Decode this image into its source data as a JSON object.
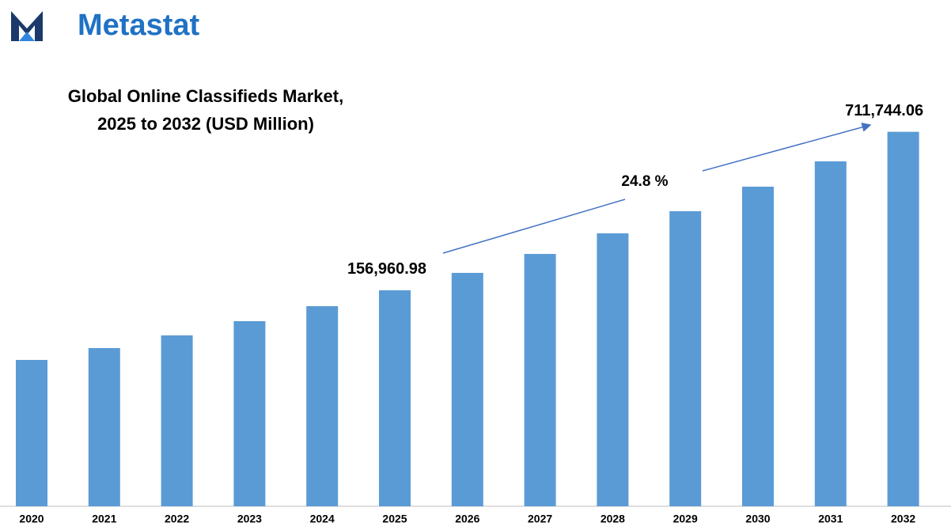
{
  "logo": "Metastat",
  "chart_data": {
    "type": "bar",
    "title": [
      "Global Online Classifieds Market,",
      "2025 to 2032 (USD Million)"
    ],
    "categories": [
      "2020",
      "2021",
      "2022",
      "2023",
      "2024",
      "2025",
      "2026",
      "2027",
      "2028",
      "2029",
      "2030",
      "2031",
      "2032"
    ],
    "values": [
      80760,
      90460,
      102060,
      116900,
      134900,
      156960.98,
      185300,
      222000,
      270200,
      333700,
      421700,
      536900,
      711744.06
    ],
    "value_labels": [
      null,
      null,
      null,
      null,
      null,
      "156,960.98",
      null,
      null,
      null,
      null,
      null,
      null,
      "711,744.06"
    ],
    "annotations": [
      {
        "text": "24.8 %"
      }
    ],
    "color": "#5b9bd5",
    "log_scale": true,
    "ylim": [
      20000,
      870000
    ]
  }
}
